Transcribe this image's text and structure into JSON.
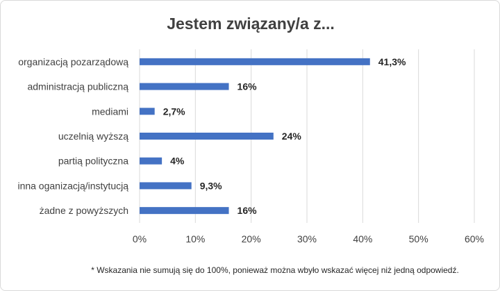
{
  "chart_data": {
    "type": "bar",
    "orientation": "horizontal",
    "title": "Jestem związany/a z...",
    "categories": [
      "organizacją pozarządową",
      "administracją publiczną",
      "mediami",
      "uczelnią wyższą",
      "partią polityczna",
      "inna oganizacją/instytucją",
      "żadne z powyższych"
    ],
    "values": [
      41.3,
      16,
      2.7,
      24,
      4,
      9.3,
      16
    ],
    "data_labels": [
      "41,3%",
      "16%",
      "2,7%",
      "24%",
      "4%",
      "9,3%",
      "16%"
    ],
    "xlim": [
      0,
      60
    ],
    "xticks": [
      "0%",
      "10%",
      "20%",
      "30%",
      "40%",
      "50%",
      "60%"
    ],
    "grid": "vertical",
    "bar_color": "#4472C4"
  },
  "footnote": "* Wskazania nie sumują się do 100%, ponieważ można wbyło wskazać więcej niż jedną odpowiedź."
}
